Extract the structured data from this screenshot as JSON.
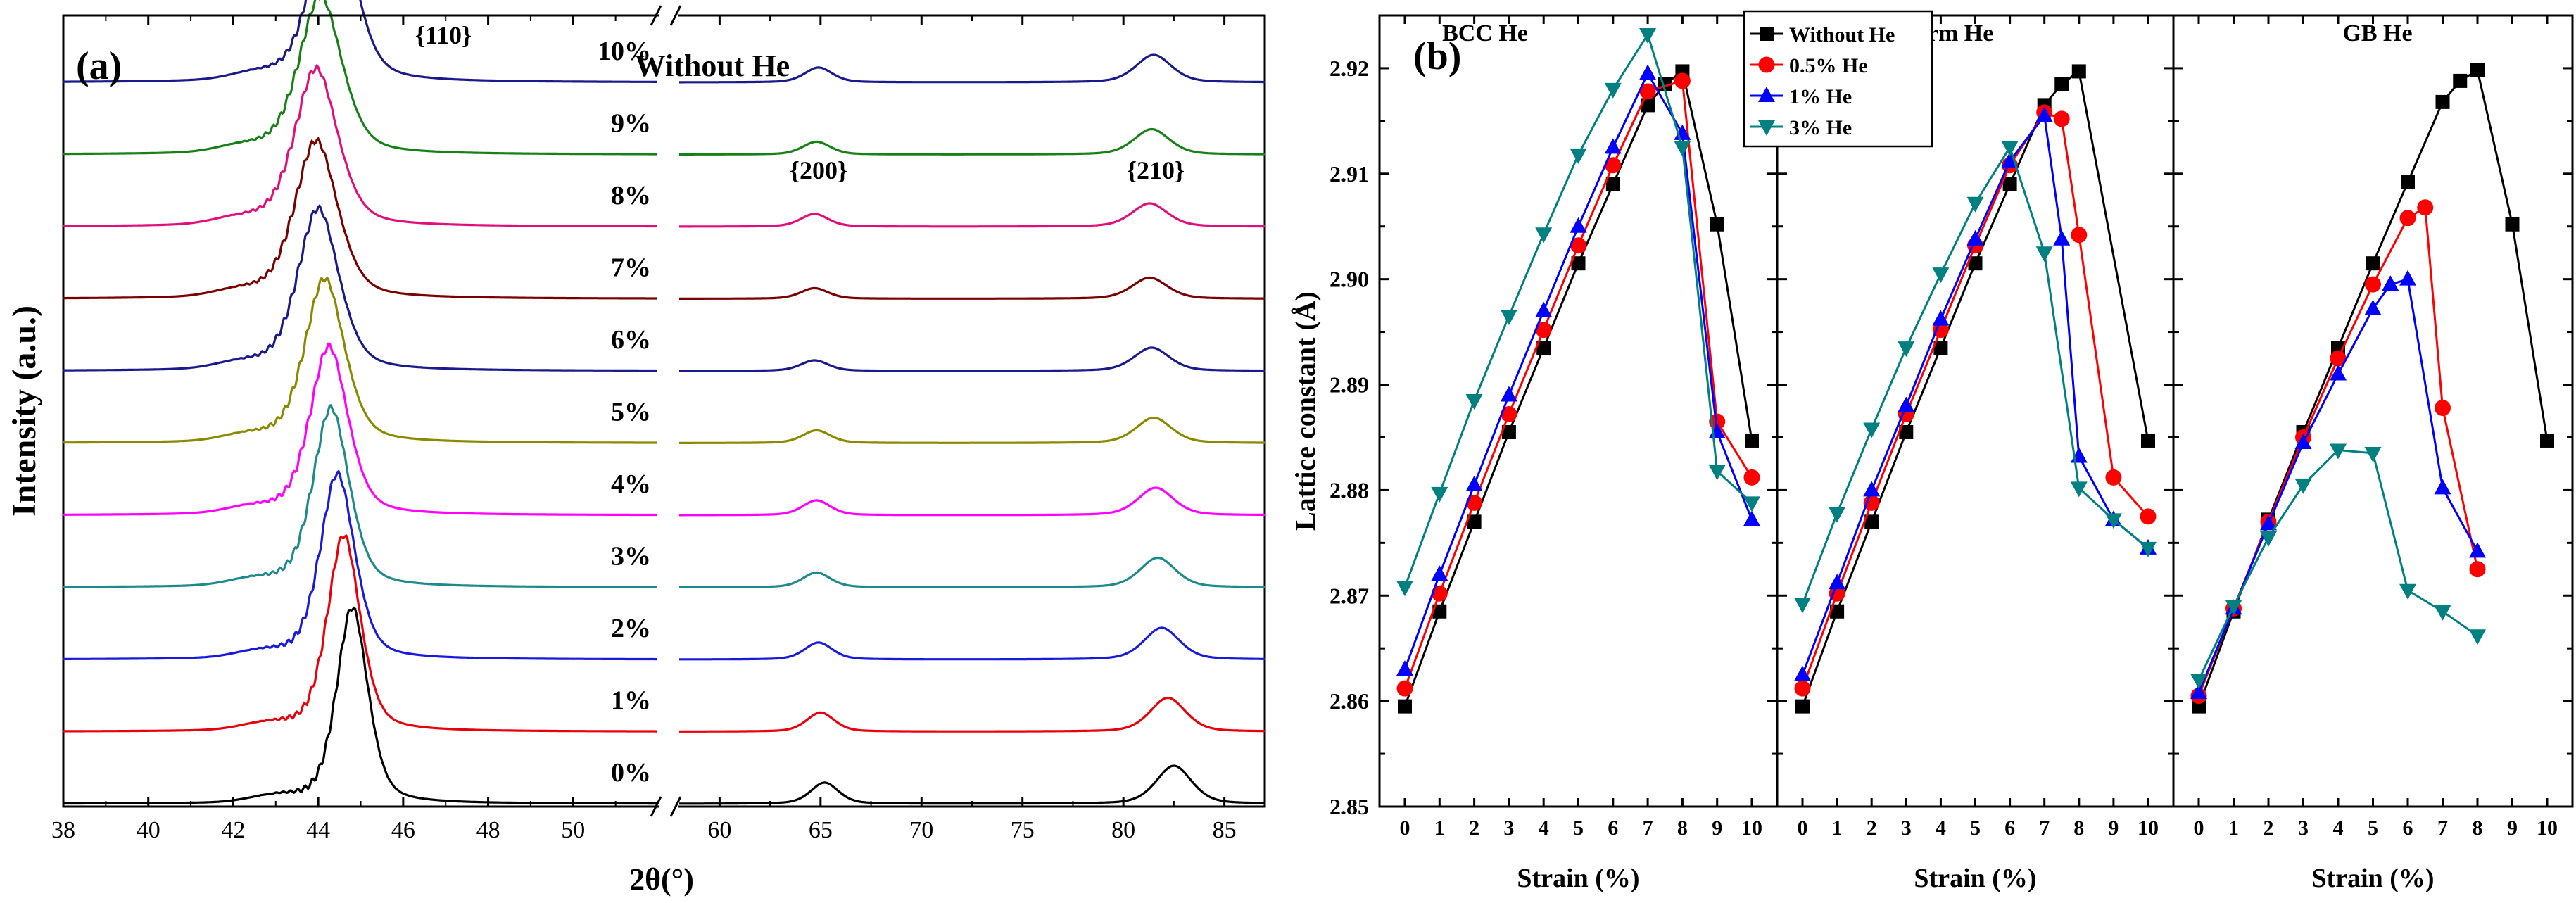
{
  "panel_a": {
    "label": "(a)",
    "chart_data": {
      "type": "line",
      "title": "Without He",
      "xlabel": "2θ(°)",
      "ylabel": "Intensity (a.u.)",
      "x_break": [
        52,
        58
      ],
      "x_ticks": [
        38,
        40,
        42,
        44,
        46,
        48,
        50,
        60,
        65,
        70,
        75,
        80,
        85
      ],
      "xlim_left": [
        38,
        52
      ],
      "xlim_right": [
        58,
        87
      ],
      "peak_labels": [
        {
          "text": "{110}",
          "x": 45.0
        },
        {
          "text": "{200}",
          "x": 64.9
        },
        {
          "text": "{210}",
          "x": 81.6
        }
      ],
      "series": [
        {
          "name": "0%",
          "color": "#000000",
          "offset": 0,
          "p110": 44.8,
          "h110": 0.93,
          "w110": 0.38,
          "p200": 65.2,
          "h200": 0.1,
          "p210": 82.5,
          "h210": 0.18
        },
        {
          "name": "1%",
          "color": "#e8000b",
          "offset": 1,
          "p110": 44.6,
          "h110": 0.93,
          "w110": 0.4,
          "p200": 65.0,
          "h200": 0.09,
          "p210": 82.2,
          "h210": 0.16
        },
        {
          "name": "2%",
          "color": "#1a1adb",
          "offset": 2,
          "p110": 44.45,
          "h110": 0.88,
          "w110": 0.42,
          "p200": 64.9,
          "h200": 0.08,
          "p210": 81.9,
          "h210": 0.15
        },
        {
          "name": "3%",
          "color": "#1f8a8a",
          "offset": 3,
          "p110": 44.3,
          "h110": 0.85,
          "w110": 0.44,
          "p200": 64.8,
          "h200": 0.07,
          "p210": 81.7,
          "h210": 0.14
        },
        {
          "name": "4%",
          "color": "#ff00ff",
          "offset": 4,
          "p110": 44.25,
          "h110": 0.8,
          "w110": 0.46,
          "p200": 64.8,
          "h200": 0.07,
          "p210": 81.6,
          "h210": 0.13
        },
        {
          "name": "5%",
          "color": "#8a8a00",
          "offset": 5,
          "p110": 44.15,
          "h110": 0.78,
          "w110": 0.48,
          "p200": 64.8,
          "h200": 0.06,
          "p210": 81.5,
          "h210": 0.12
        },
        {
          "name": "6%",
          "color": "#1a1a8a",
          "offset": 6,
          "p110": 44.0,
          "h110": 0.77,
          "w110": 0.5,
          "p200": 64.7,
          "h200": 0.05,
          "p210": 81.4,
          "h210": 0.11
        },
        {
          "name": "7%",
          "color": "#7a0000",
          "offset": 7,
          "p110": 43.95,
          "h110": 0.75,
          "w110": 0.52,
          "p200": 64.7,
          "h200": 0.05,
          "p210": 81.3,
          "h210": 0.1
        },
        {
          "name": "8%",
          "color": "#e0107a",
          "offset": 8,
          "p110": 43.95,
          "h110": 0.75,
          "w110": 0.52,
          "p200": 64.7,
          "h200": 0.06,
          "p210": 81.3,
          "h210": 0.11
        },
        {
          "name": "9%",
          "color": "#188018",
          "offset": 9,
          "p110": 44.05,
          "h110": 0.75,
          "w110": 0.52,
          "p200": 64.8,
          "h200": 0.06,
          "p210": 81.4,
          "h210": 0.12
        },
        {
          "name": "10%",
          "color": "#1a1a8a",
          "offset": 10,
          "p110": 44.35,
          "h110": 0.9,
          "w110": 0.5,
          "p200": 64.9,
          "h200": 0.07,
          "p210": 81.5,
          "h210": 0.13
        }
      ]
    }
  },
  "panel_b": {
    "label": "(b)",
    "chart_data": {
      "type": "line",
      "ylabel": "Lattice constant (Å)",
      "xlabel": "Strain (%)",
      "ylim": [
        2.85,
        2.925
      ],
      "yticks": [
        "2.85",
        "2.86",
        "2.87",
        "2.88",
        "2.89",
        "2.90",
        "2.91",
        "2.92"
      ],
      "xticks": [
        "0",
        "1",
        "2",
        "3",
        "4",
        "5",
        "6",
        "7",
        "8",
        "9",
        "10"
      ],
      "legend": [
        "Without He",
        "0.5% He",
        "1% He",
        "3% He"
      ],
      "legend_colors": [
        "#000000",
        "#ff0000",
        "#0000ff",
        "#008080"
      ],
      "subplots": [
        {
          "title": "BCC He",
          "series": [
            {
              "name": "Without He",
              "x": [
                0,
                1,
                2,
                3,
                4,
                5,
                6,
                7,
                7.5,
                8,
                9,
                10
              ],
              "y": [
                2.8595,
                2.8685,
                2.877,
                2.8855,
                2.8935,
                2.9015,
                2.909,
                2.9165,
                2.9185,
                2.9197,
                2.9052,
                2.8847
              ]
            },
            {
              "name": "0.5% He",
              "x": [
                0,
                1,
                2,
                3,
                4,
                5,
                6,
                7,
                8,
                9,
                10
              ],
              "y": [
                2.8612,
                2.8702,
                2.8788,
                2.8872,
                2.8952,
                2.9032,
                2.9108,
                2.9178,
                2.9188,
                2.8865,
                2.8812
              ]
            },
            {
              "name": "1% He",
              "x": [
                0,
                1,
                2,
                3,
                4,
                5,
                6,
                7,
                8,
                9,
                10
              ],
              "y": [
                2.863,
                2.872,
                2.8805,
                2.889,
                2.897,
                2.905,
                2.9125,
                2.9195,
                2.9138,
                2.8855,
                2.8772
              ]
            },
            {
              "name": "3% He",
              "x": [
                0,
                1,
                2,
                3,
                4,
                5,
                6,
                7,
                8,
                9,
                10
              ],
              "y": [
                2.8708,
                2.8797,
                2.8885,
                2.8965,
                2.9043,
                2.9118,
                2.918,
                2.9232,
                2.9125,
                2.8818,
                2.8788
              ]
            }
          ]
        },
        {
          "title": "Uniform He",
          "series": [
            {
              "name": "Without He",
              "x": [
                0,
                1,
                2,
                3,
                4,
                5,
                6,
                7,
                7.5,
                8,
                10
              ],
              "y": [
                2.8595,
                2.8685,
                2.877,
                2.8855,
                2.8935,
                2.9015,
                2.909,
                2.9165,
                2.9185,
                2.9197,
                2.8847
              ]
            },
            {
              "name": "0.5% He",
              "x": [
                0,
                1,
                2,
                3,
                4,
                5,
                6,
                7,
                7.5,
                8,
                9,
                10
              ],
              "y": [
                2.8612,
                2.8702,
                2.8788,
                2.8872,
                2.8952,
                2.9032,
                2.9108,
                2.9158,
                2.9152,
                2.9042,
                2.8812,
                2.8775
              ]
            },
            {
              "name": "1% He",
              "x": [
                0,
                1,
                2,
                3,
                4,
                5,
                6,
                7,
                7.5,
                8,
                9,
                10
              ],
              "y": [
                2.8625,
                2.8712,
                2.88,
                2.888,
                2.8962,
                2.9038,
                2.9112,
                2.9155,
                2.9038,
                2.8832,
                2.8772,
                2.8745
              ]
            },
            {
              "name": "3% He",
              "x": [
                0,
                1,
                2,
                3,
                4,
                5,
                6,
                7,
                8,
                9,
                10
              ],
              "y": [
                2.8692,
                2.8778,
                2.8858,
                2.8935,
                2.9005,
                2.9072,
                2.9125,
                2.9025,
                2.8802,
                2.8772,
                2.8745
              ]
            }
          ]
        },
        {
          "title": "GB He",
          "series": [
            {
              "name": "Without He",
              "x": [
                0,
                1,
                2,
                3,
                4,
                5,
                6,
                7,
                7.5,
                8,
                9,
                10
              ],
              "y": [
                2.8595,
                2.8685,
                2.8772,
                2.8855,
                2.8935,
                2.9015,
                2.9092,
                2.9168,
                2.9188,
                2.9198,
                2.9052,
                2.8847
              ]
            },
            {
              "name": "0.5% He",
              "x": [
                0,
                1,
                2,
                3,
                4,
                5,
                6,
                6.5,
                7,
                8
              ],
              "y": [
                2.8605,
                2.8688,
                2.877,
                2.885,
                2.8925,
                2.8995,
                2.9058,
                2.9068,
                2.8878,
                2.8725
              ]
            },
            {
              "name": "1% He",
              "x": [
                0,
                1,
                2,
                3,
                4,
                5,
                5.5,
                6,
                7,
                8
              ],
              "y": [
                2.8608,
                2.8688,
                2.8768,
                2.8845,
                2.891,
                2.8972,
                2.8995,
                2.9,
                2.8802,
                2.8742
              ]
            },
            {
              "name": "3% He",
              "x": [
                0,
                1,
                2,
                3,
                4,
                5,
                6,
                7,
                8
              ],
              "y": [
                2.862,
                2.869,
                2.8755,
                2.8805,
                2.8838,
                2.8835,
                2.8705,
                2.8685,
                2.8662
              ]
            }
          ]
        }
      ]
    }
  }
}
